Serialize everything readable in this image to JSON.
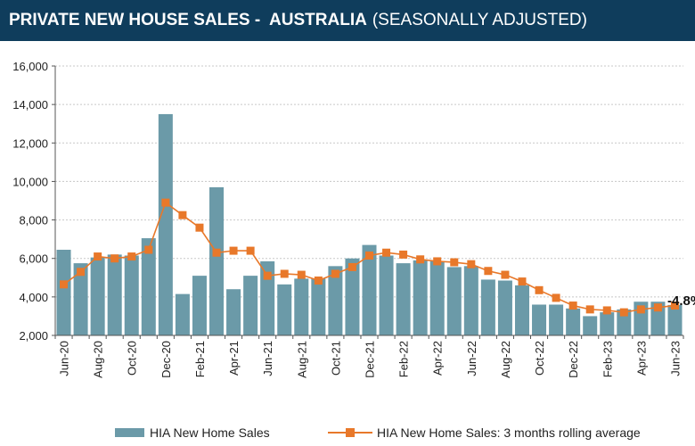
{
  "header": {
    "title": "PRIVATE NEW HOUSE SALES -  AUSTRALIA",
    "subtitle": "(SEASONALLY ADJUSTED)"
  },
  "colors": {
    "header_bg": "#0f3d5c",
    "bar": "#6b9aa8",
    "line": "#e8782a",
    "marker": "#e8782a"
  },
  "chart_data": {
    "type": "bar",
    "months": [
      "Jun-20",
      "Jul-20",
      "Aug-20",
      "Sep-20",
      "Oct-20",
      "Nov-20",
      "Dec-20",
      "Jan-21",
      "Feb-21",
      "Mar-21",
      "Apr-21",
      "May-21",
      "Jun-21",
      "Jul-21",
      "Aug-21",
      "Sep-21",
      "Oct-21",
      "Nov-21",
      "Dec-21",
      "Jan-22",
      "Feb-22",
      "Mar-22",
      "Apr-22",
      "May-22",
      "Jun-22",
      "Jul-22",
      "Aug-22",
      "Sep-22",
      "Oct-22",
      "Nov-22",
      "Dec-22",
      "Jan-23",
      "Feb-23",
      "Mar-23",
      "Apr-23",
      "May-23",
      "Jun-23"
    ],
    "tick_labels": [
      "Jun-20",
      "Aug-20",
      "Oct-20",
      "Dec-20",
      "Feb-21",
      "Apr-21",
      "Jun-21",
      "Aug-21",
      "Oct-21",
      "Dec-21",
      "Feb-22",
      "Apr-22",
      "Jun-22",
      "Aug-22",
      "Oct-22",
      "Dec-22",
      "Feb-23",
      "Apr-23",
      "Jun-23"
    ],
    "series": [
      {
        "name": "HIA New Home Sales",
        "type": "bar",
        "values": [
          6450,
          5750,
          6050,
          6200,
          6150,
          7050,
          13500,
          4150,
          5100,
          9700,
          4400,
          5100,
          5850,
          4650,
          4950,
          4950,
          5600,
          6000,
          6700,
          6150,
          5750,
          5900,
          5850,
          5550,
          5600,
          4900,
          4850,
          4600,
          3600,
          3600,
          3400,
          3000,
          3200,
          3350,
          3750,
          3750,
          3580
        ]
      },
      {
        "name": "HIA New Home Sales: 3 months rolling average",
        "type": "line",
        "values": [
          4650,
          5300,
          6100,
          6000,
          6100,
          6450,
          8900,
          8250,
          7600,
          6300,
          6400,
          6400,
          5100,
          5200,
          5150,
          4850,
          5200,
          5550,
          6150,
          6300,
          6200,
          5950,
          5850,
          5800,
          5700,
          5350,
          5150,
          4800,
          4350,
          3950,
          3550,
          3350,
          3300,
          3200,
          3350,
          3450,
          3550
        ]
      }
    ],
    "yticks": [
      "2,000",
      "4,000",
      "6,000",
      "8,000",
      "10,000",
      "12,000",
      "14,000",
      "16,000"
    ],
    "ylim": [
      2000,
      16000
    ],
    "annotation": "-4.8%",
    "grid": true,
    "legend": "bottom"
  }
}
